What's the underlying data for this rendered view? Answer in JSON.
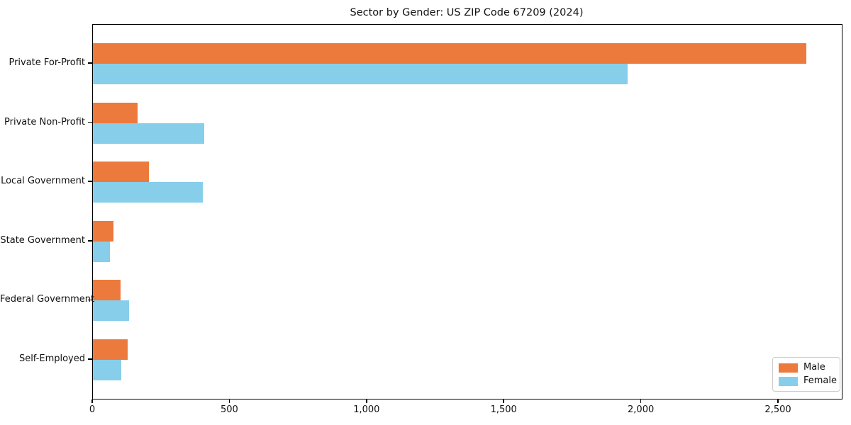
{
  "figure": {
    "background": "#ffffff",
    "frame_color": "#000000"
  },
  "chart_data": {
    "type": "bar",
    "orientation": "horizontal",
    "title": "Sector by Gender: US ZIP Code 67209 (2024)",
    "categories": [
      "Private For-Profit",
      "Private Non-Profit",
      "Local Government",
      "State Government",
      "Federal Government",
      "Self-Employed"
    ],
    "series": [
      {
        "name": "Male",
        "color": "#EC7A3D",
        "values": [
          2600,
          163,
          205,
          76,
          102,
          127
        ]
      },
      {
        "name": "Female",
        "color": "#87CEEB",
        "values": [
          1950,
          405,
          400,
          63,
          133,
          104
        ]
      }
    ],
    "xlabel": "",
    "ylabel": "",
    "xlim": [
      0,
      2730
    ],
    "xticks": [
      0,
      500,
      1000,
      1500,
      2000,
      2500
    ],
    "xtick_labels": [
      "0",
      "500",
      "1,000",
      "1,500",
      "2,000",
      "2,500"
    ],
    "grid": false,
    "legend": {
      "position": "lower right",
      "entries": [
        "Male",
        "Female"
      ]
    }
  }
}
